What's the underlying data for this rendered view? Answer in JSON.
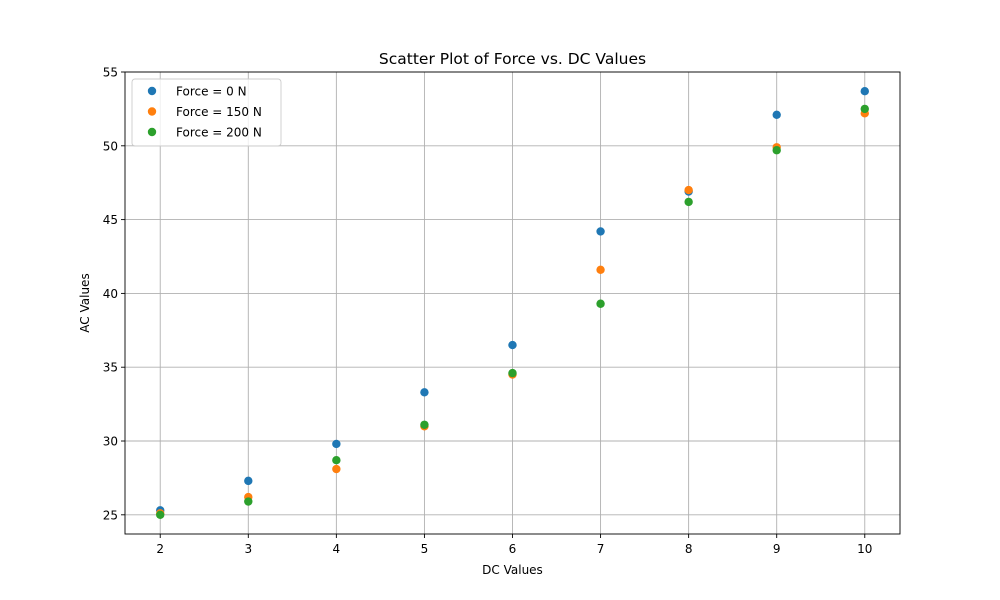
{
  "chart_data": {
    "type": "scatter",
    "title": "Scatter Plot of Force vs. DC Values",
    "xlabel": "DC Values",
    "ylabel": "AC Values",
    "xlim": [
      1.6,
      10.4
    ],
    "ylim": [
      23.7,
      55.0
    ],
    "xticks": [
      2,
      3,
      4,
      5,
      6,
      7,
      8,
      9,
      10
    ],
    "yticks": [
      25,
      30,
      35,
      40,
      45,
      50,
      55
    ],
    "x_tick_labels": [
      "2",
      "3",
      "4",
      "5",
      "6",
      "7",
      "8",
      "9",
      "10"
    ],
    "y_tick_labels": [
      "25",
      "30",
      "35",
      "40",
      "45",
      "50",
      "55"
    ],
    "grid": true,
    "legend_position": "top-left",
    "x": [
      2,
      3,
      4,
      5,
      6,
      7,
      8,
      9,
      10
    ],
    "series": [
      {
        "name": "Force = 0 N",
        "color": "#1f77b4",
        "values": [
          25.3,
          27.3,
          29.8,
          33.3,
          36.5,
          44.2,
          46.9,
          52.1,
          53.7
        ]
      },
      {
        "name": "Force = 150 N",
        "color": "#ff7f0e",
        "values": [
          25.1,
          26.2,
          28.1,
          31.0,
          34.5,
          41.6,
          47.0,
          49.9,
          52.2
        ]
      },
      {
        "name": "Force = 200 N",
        "color": "#2ca02c",
        "values": [
          25.0,
          25.9,
          28.7,
          31.1,
          34.6,
          39.3,
          46.2,
          49.7,
          52.5
        ]
      }
    ]
  }
}
